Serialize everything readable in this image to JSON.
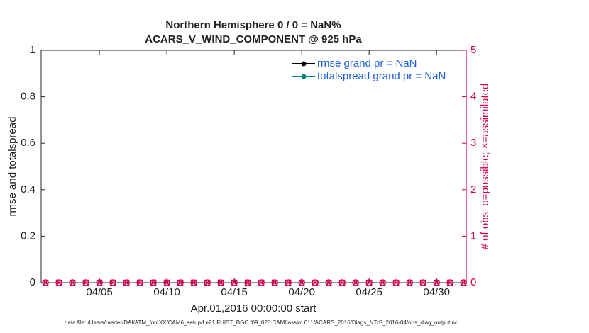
{
  "chart_data": {
    "type": "line",
    "title": "Northern Hemisphere 0 / 0 = NaN%",
    "subtitle": "ACARS_V_WIND_COMPONENT @ 925 hPa",
    "ylabel": "rmse and totalspread",
    "y2label": "# of obs: o=possible; ×=assimilated",
    "xlabel": "Apr.01,2016 00:00:00 start",
    "footnote": "data file: /Users/raeder/DAI/ATM_forcXX/CAM6_setup/f.e21.FHIST_BGC.f09_025.CAM6assim.011/ACARS_2016/Diags_NTrS_2016-04/obs_diag_output.nc",
    "x": [
      1,
      2,
      3,
      4,
      5,
      6,
      7,
      8,
      9,
      10,
      11,
      12,
      13,
      14,
      15,
      16,
      17,
      18,
      19,
      20,
      21,
      22,
      23,
      24,
      25,
      26,
      27,
      28,
      29,
      30,
      31,
      32
    ],
    "xlim": [
      0.68,
      32.2
    ],
    "xticks": [
      {
        "value": 5,
        "label": "04/05"
      },
      {
        "value": 10,
        "label": "04/10"
      },
      {
        "value": 15,
        "label": "04/15"
      },
      {
        "value": 20,
        "label": "04/20"
      },
      {
        "value": 25,
        "label": "04/25"
      },
      {
        "value": 30,
        "label": "04/30"
      }
    ],
    "ylim": [
      0,
      1
    ],
    "yticks": [
      0,
      0.2,
      0.4,
      0.6,
      0.8,
      1
    ],
    "y2lim": [
      0,
      5
    ],
    "y2ticks": [
      0,
      1,
      2,
      3,
      4,
      5
    ],
    "y2color": "#d1004f",
    "legend_color": "#1a5fe0",
    "series": [
      {
        "name": "rmse grand pr = NaN",
        "color": "#000000",
        "marker": "dot",
        "values": [
          null,
          null,
          null,
          null,
          null,
          null,
          null,
          null,
          null,
          null,
          null,
          null,
          null,
          null,
          null,
          null,
          null,
          null,
          null,
          null,
          null,
          null,
          null,
          null,
          null,
          null,
          null,
          null,
          null,
          null,
          null,
          null
        ]
      },
      {
        "name": "totalspread grand pr = NaN",
        "color": "#008080",
        "marker": "dot",
        "values": [
          null,
          null,
          null,
          null,
          null,
          null,
          null,
          null,
          null,
          null,
          null,
          null,
          null,
          null,
          null,
          null,
          null,
          null,
          null,
          null,
          null,
          null,
          null,
          null,
          null,
          null,
          null,
          null,
          null,
          null,
          null,
          null
        ]
      },
      {
        "axis": "y2",
        "color": "#d1004f",
        "marker": "o",
        "values": [
          0,
          0,
          0,
          0,
          0,
          0,
          0,
          0,
          0,
          0,
          0,
          0,
          0,
          0,
          0,
          0,
          0,
          0,
          0,
          0,
          0,
          0,
          0,
          0,
          0,
          0,
          0,
          0,
          0,
          0,
          0,
          0
        ]
      },
      {
        "axis": "y2",
        "color": "#d1004f",
        "marker": "x",
        "values": [
          0,
          0,
          0,
          0,
          0,
          0,
          0,
          0,
          0,
          0,
          0,
          0,
          0,
          0,
          0,
          0,
          0,
          0,
          0,
          0,
          0,
          0,
          0,
          0,
          0,
          0,
          0,
          0,
          0,
          0,
          0,
          0
        ]
      }
    ]
  }
}
